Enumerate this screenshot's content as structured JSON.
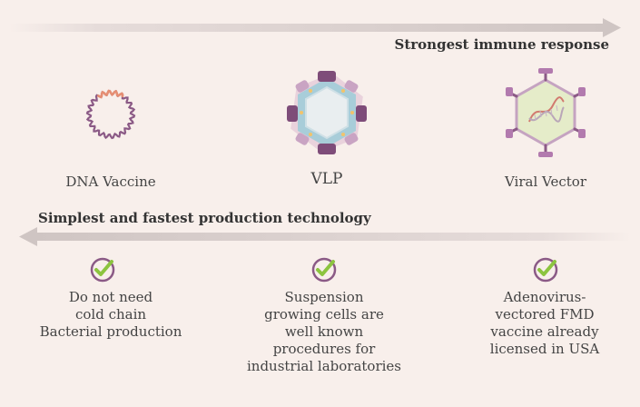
{
  "top_arrow": {
    "label": "Strongest immune response"
  },
  "bottom_arrow": {
    "label": "Simplest and fastest production technology"
  },
  "vaccine_types": [
    {
      "name": "DNA Vaccine",
      "icon": "dna-plasmid-icon"
    },
    {
      "name": "VLP",
      "icon": "virus-like-particle-icon"
    },
    {
      "name": "Viral Vector",
      "icon": "viral-vector-icon"
    }
  ],
  "advantages": [
    {
      "lines": [
        "Do not need",
        "cold chain",
        "Bacterial production"
      ]
    },
    {
      "lines": [
        "Suspension",
        "growing cells are",
        "well known",
        "procedures for",
        "industrial laboratories"
      ]
    },
    {
      "lines": [
        "Adenovirus-",
        "vectored FMD",
        "vaccine already",
        "licensed in USA"
      ]
    }
  ],
  "colors": {
    "background": "#f8efeb",
    "arrow": "#d9cfcd",
    "purple": "#8b5a86",
    "check_green": "#8cc43f"
  }
}
